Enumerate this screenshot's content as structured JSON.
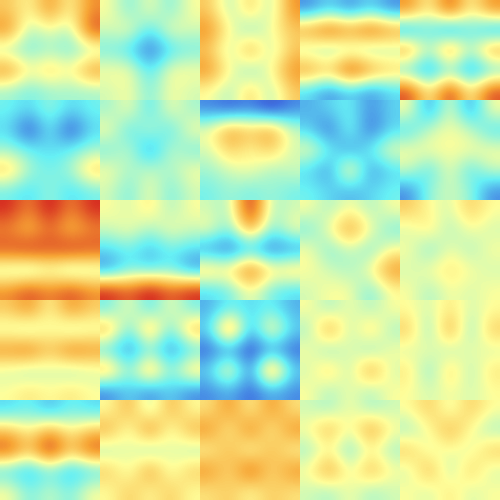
{
  "chart_data": {
    "type": "heatmap",
    "tick_labels": false,
    "grid": false,
    "value_range": [
      0,
      1
    ],
    "panels": [
      [
        [
          [
            0.6,
            0.5,
            0.7,
            0.5,
            0.7
          ],
          [
            0.7,
            0.4,
            0.5,
            0.4,
            0.8
          ],
          [
            0.4,
            0.35,
            0.4,
            0.35,
            0.4
          ],
          [
            0.7,
            0.5,
            0.6,
            0.5,
            0.7
          ],
          [
            0.4,
            0.35,
            0.4,
            0.4,
            0.4
          ]
        ],
        [
          [
            0.5,
            0.35,
            0.5,
            0.35,
            0.5
          ],
          [
            0.45,
            0.5,
            0.3,
            0.5,
            0.45
          ],
          [
            0.35,
            0.3,
            0.15,
            0.3,
            0.35
          ],
          [
            0.5,
            0.5,
            0.3,
            0.5,
            0.5
          ],
          [
            0.45,
            0.5,
            0.35,
            0.5,
            0.45
          ]
        ],
        [
          [
            0.6,
            0.4,
            0.6,
            0.4,
            0.7
          ],
          [
            0.7,
            0.5,
            0.35,
            0.5,
            0.6
          ],
          [
            0.6,
            0.4,
            0.7,
            0.4,
            0.6
          ],
          [
            0.7,
            0.5,
            0.35,
            0.5,
            0.7
          ],
          [
            0.5,
            0.4,
            0.6,
            0.4,
            0.6
          ]
        ],
        [
          [
            0.2,
            0.3,
            0.2,
            0.3,
            0.2
          ],
          [
            0.7,
            0.8,
            0.7,
            0.8,
            0.7
          ],
          [
            0.4,
            0.35,
            0.4,
            0.35,
            0.4
          ],
          [
            0.7,
            0.6,
            0.85,
            0.7,
            0.6
          ],
          [
            0.3,
            0.2,
            0.3,
            0.2,
            0.3
          ]
        ],
        [
          [
            0.7,
            0.5,
            0.8,
            0.5,
            0.7
          ],
          [
            0.2,
            0.35,
            0.15,
            0.35,
            0.2
          ],
          [
            0.7,
            0.4,
            0.75,
            0.4,
            0.7
          ],
          [
            0.3,
            0.2,
            0.35,
            0.2,
            0.3
          ],
          [
            0.8,
            0.5,
            0.85,
            0.5,
            0.8
          ]
        ]
      ],
      [
        [
          [
            0.35,
            0.3,
            0.4,
            0.3,
            0.35
          ],
          [
            0.3,
            0.1,
            0.35,
            0.1,
            0.3
          ],
          [
            0.4,
            0.35,
            0.3,
            0.35,
            0.4
          ],
          [
            0.6,
            0.4,
            0.35,
            0.4,
            0.6
          ],
          [
            0.35,
            0.3,
            0.4,
            0.3,
            0.35
          ]
        ],
        [
          [
            0.4,
            0.5,
            0.3,
            0.5,
            0.4
          ],
          [
            0.5,
            0.3,
            0.45,
            0.3,
            0.5
          ],
          [
            0.35,
            0.45,
            0.2,
            0.45,
            0.35
          ],
          [
            0.5,
            0.4,
            0.45,
            0.4,
            0.5
          ],
          [
            0.45,
            0.35,
            0.5,
            0.35,
            0.45
          ]
        ],
        [
          [
            0.2,
            0.15,
            0.2,
            0.1,
            0.2
          ],
          [
            0.5,
            0.7,
            0.6,
            0.7,
            0.45
          ],
          [
            0.45,
            0.6,
            0.5,
            0.6,
            0.45
          ],
          [
            0.4,
            0.45,
            0.5,
            0.4,
            0.45
          ],
          [
            0.35,
            0.4,
            0.35,
            0.4,
            0.35
          ]
        ],
        [
          [
            0.25,
            0.3,
            0.35,
            0.2,
            0.3
          ],
          [
            0.3,
            0.15,
            0.4,
            0.15,
            0.3
          ],
          [
            0.5,
            0.35,
            0.2,
            0.35,
            0.5
          ],
          [
            0.3,
            0.2,
            0.6,
            0.2,
            0.3
          ],
          [
            0.35,
            0.3,
            0.25,
            0.3,
            0.35
          ]
        ],
        [
          [
            0.5,
            0.2,
            0.5,
            0.2,
            0.5
          ],
          [
            0.3,
            0.45,
            0.5,
            0.45,
            0.3
          ],
          [
            0.5,
            0.5,
            0.5,
            0.5,
            0.5
          ],
          [
            0.45,
            0.3,
            0.5,
            0.3,
            0.45
          ],
          [
            0.2,
            0.4,
            0.45,
            0.4,
            0.2
          ]
        ]
      ],
      [
        [
          [
            0.85,
            0.7,
            0.9,
            0.7,
            0.85
          ],
          [
            0.7,
            0.6,
            0.75,
            0.6,
            0.7
          ],
          [
            0.8,
            0.85,
            0.8,
            0.85,
            0.8
          ],
          [
            0.4,
            0.35,
            0.45,
            0.35,
            0.4
          ],
          [
            0.7,
            0.8,
            0.7,
            0.8,
            0.7
          ]
        ],
        [
          [
            0.5,
            0.45,
            0.55,
            0.4,
            0.5
          ],
          [
            0.45,
            0.5,
            0.4,
            0.5,
            0.45
          ],
          [
            0.3,
            0.35,
            0.25,
            0.35,
            0.3
          ],
          [
            0.2,
            0.35,
            0.3,
            0.35,
            0.2
          ],
          [
            0.85,
            0.75,
            0.9,
            0.75,
            0.85
          ]
        ],
        [
          [
            0.45,
            0.4,
            0.9,
            0.4,
            0.45
          ],
          [
            0.5,
            0.35,
            0.7,
            0.35,
            0.5
          ],
          [
            0.2,
            0.15,
            0.25,
            0.15,
            0.2
          ],
          [
            0.6,
            0.55,
            0.8,
            0.55,
            0.6
          ],
          [
            0.3,
            0.35,
            0.5,
            0.35,
            0.3
          ]
        ],
        [
          [
            0.5,
            0.4,
            0.5,
            0.4,
            0.5
          ],
          [
            0.35,
            0.5,
            0.7,
            0.5,
            0.35
          ],
          [
            0.5,
            0.35,
            0.45,
            0.35,
            0.5
          ],
          [
            0.5,
            0.45,
            0.4,
            0.5,
            0.7
          ],
          [
            0.45,
            0.5,
            0.5,
            0.35,
            0.5
          ]
        ],
        [
          [
            0.6,
            0.5,
            0.45,
            0.6,
            0.5
          ],
          [
            0.45,
            0.55,
            0.4,
            0.5,
            0.45
          ],
          [
            0.5,
            0.35,
            0.5,
            0.4,
            0.5
          ],
          [
            0.45,
            0.5,
            0.55,
            0.5,
            0.45
          ],
          [
            0.5,
            0.4,
            0.5,
            0.45,
            0.5
          ]
        ]
      ],
      [
        [
          [
            0.6,
            0.7,
            0.5,
            0.7,
            0.6
          ],
          [
            0.45,
            0.4,
            0.5,
            0.4,
            0.45
          ],
          [
            0.7,
            0.75,
            0.6,
            0.75,
            0.7
          ],
          [
            0.45,
            0.4,
            0.45,
            0.4,
            0.45
          ],
          [
            0.5,
            0.55,
            0.5,
            0.55,
            0.5
          ]
        ],
        [
          [
            0.35,
            0.5,
            0.3,
            0.5,
            0.35
          ],
          [
            0.65,
            0.3,
            0.7,
            0.3,
            0.65
          ],
          [
            0.3,
            0.2,
            0.35,
            0.2,
            0.3
          ],
          [
            0.65,
            0.35,
            0.7,
            0.35,
            0.6
          ],
          [
            0.2,
            0.3,
            0.2,
            0.3,
            0.2
          ]
        ],
        [
          [
            0.25,
            0.35,
            0.3,
            0.35,
            0.25
          ],
          [
            0.3,
            0.8,
            0.2,
            0.6,
            0.3
          ],
          [
            0.15,
            0.2,
            0.1,
            0.2,
            0.15
          ],
          [
            0.3,
            0.6,
            0.15,
            0.8,
            0.3
          ],
          [
            0.2,
            0.25,
            0.15,
            0.25,
            0.2
          ]
        ],
        [
          [
            0.5,
            0.4,
            0.5,
            0.4,
            0.5
          ],
          [
            0.4,
            0.7,
            0.4,
            0.6,
            0.4
          ],
          [
            0.5,
            0.35,
            0.5,
            0.35,
            0.5
          ],
          [
            0.45,
            0.6,
            0.4,
            0.7,
            0.45
          ],
          [
            0.5,
            0.4,
            0.5,
            0.4,
            0.5
          ]
        ],
        [
          [
            0.5,
            0.45,
            0.55,
            0.45,
            0.5
          ],
          [
            0.6,
            0.35,
            0.7,
            0.35,
            0.6
          ],
          [
            0.45,
            0.5,
            0.4,
            0.5,
            0.45
          ],
          [
            0.55,
            0.35,
            0.6,
            0.4,
            0.55
          ],
          [
            0.5,
            0.45,
            0.5,
            0.45,
            0.5
          ]
        ]
      ],
      [
        [
          [
            0.3,
            0.35,
            0.25,
            0.35,
            0.3
          ],
          [
            0.6,
            0.5,
            0.65,
            0.5,
            0.6
          ],
          [
            0.8,
            0.6,
            0.9,
            0.6,
            0.8
          ],
          [
            0.3,
            0.25,
            0.35,
            0.25,
            0.3
          ],
          [
            0.5,
            0.35,
            0.45,
            0.35,
            0.5
          ]
        ],
        [
          [
            0.5,
            0.65,
            0.4,
            0.65,
            0.5
          ],
          [
            0.65,
            0.45,
            0.75,
            0.45,
            0.65
          ],
          [
            0.4,
            0.5,
            0.35,
            0.5,
            0.4
          ],
          [
            0.6,
            0.45,
            0.7,
            0.45,
            0.6
          ],
          [
            0.5,
            0.6,
            0.5,
            0.6,
            0.5
          ]
        ],
        [
          [
            0.55,
            0.7,
            0.5,
            0.7,
            0.55
          ],
          [
            0.7,
            0.5,
            0.75,
            0.5,
            0.7
          ],
          [
            0.5,
            0.65,
            0.45,
            0.65,
            0.5
          ],
          [
            0.7,
            0.55,
            0.8,
            0.55,
            0.7
          ],
          [
            0.55,
            0.6,
            0.5,
            0.6,
            0.55
          ]
        ],
        [
          [
            0.45,
            0.4,
            0.5,
            0.4,
            0.45
          ],
          [
            0.5,
            0.65,
            0.45,
            0.7,
            0.5
          ],
          [
            0.4,
            0.5,
            0.35,
            0.5,
            0.4
          ],
          [
            0.5,
            0.7,
            0.45,
            0.65,
            0.5
          ],
          [
            0.45,
            0.4,
            0.5,
            0.4,
            0.45
          ]
        ],
        [
          [
            0.5,
            0.6,
            0.45,
            0.6,
            0.5
          ],
          [
            0.4,
            0.5,
            0.65,
            0.5,
            0.4
          ],
          [
            0.6,
            0.45,
            0.5,
            0.45,
            0.6
          ],
          [
            0.45,
            0.65,
            0.4,
            0.6,
            0.45
          ],
          [
            0.5,
            0.45,
            0.55,
            0.45,
            0.5
          ]
        ]
      ]
    ]
  }
}
